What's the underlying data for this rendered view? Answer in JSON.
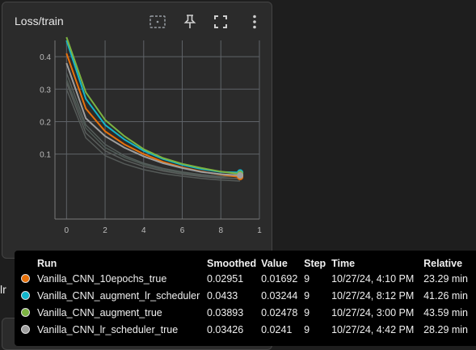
{
  "card": {
    "title": "Loss/train"
  },
  "toolbar": {
    "fit_icon": "fit-domain-icon",
    "pin_icon": "pin-icon",
    "fullscreen_icon": "fullscreen-icon",
    "more_icon": "more-vert-icon"
  },
  "side_label": "lr",
  "chart_data": {
    "type": "line",
    "title": "Loss/train",
    "xlabel": "",
    "ylabel": "",
    "x_ticks": [
      "0",
      "2",
      "4",
      "6",
      "8",
      "1"
    ],
    "y_ticks": [
      "0.1",
      "0.2",
      "0.3",
      "0.4"
    ],
    "xlim": [
      -0.6,
      10
    ],
    "ylim": [
      -0.1,
      0.45
    ],
    "grid": true,
    "series": [
      {
        "name": "Vanilla_CNN_10epochs_true",
        "color": "#e8710a",
        "x": [
          0,
          1,
          2,
          3,
          4,
          5,
          6,
          7,
          8,
          9
        ],
        "y": [
          0.41,
          0.24,
          0.17,
          0.13,
          0.1,
          0.076,
          0.059,
          0.046,
          0.037,
          0.0295
        ]
      },
      {
        "name": "Vanilla_CNN_augment_lr_scheduler",
        "color": "#12b5cb",
        "x": [
          0,
          1,
          2,
          3,
          4,
          5,
          6,
          7,
          8,
          9
        ],
        "y": [
          0.45,
          0.27,
          0.19,
          0.145,
          0.11,
          0.085,
          0.067,
          0.054,
          0.045,
          0.0433
        ]
      },
      {
        "name": "Vanilla_CNN_augment_true",
        "color": "#7cb342",
        "x": [
          0,
          1,
          2,
          3,
          4,
          5,
          6,
          7,
          8,
          9
        ],
        "y": [
          0.46,
          0.29,
          0.205,
          0.155,
          0.115,
          0.088,
          0.07,
          0.057,
          0.046,
          0.0389
        ]
      },
      {
        "name": "Vanilla_CNN_lr_scheduler_true",
        "color": "#9e9e9e",
        "x": [
          0,
          1,
          2,
          3,
          4,
          5,
          6,
          7,
          8,
          9
        ],
        "y": [
          0.38,
          0.21,
          0.155,
          0.12,
          0.093,
          0.072,
          0.057,
          0.045,
          0.038,
          0.0343
        ]
      }
    ],
    "raw_series": [
      {
        "color": "#555a58",
        "x": [
          0,
          1,
          2,
          3,
          4,
          5,
          6,
          7,
          8,
          9
        ],
        "y": [
          0.3,
          0.15,
          0.095,
          0.07,
          0.052,
          0.04,
          0.032,
          0.025,
          0.02,
          0.017
        ]
      },
      {
        "color": "#4f5a55",
        "x": [
          0,
          1,
          2,
          3,
          4,
          5,
          6,
          7,
          8,
          9
        ],
        "y": [
          0.33,
          0.18,
          0.12,
          0.09,
          0.068,
          0.052,
          0.042,
          0.034,
          0.028,
          0.024
        ]
      },
      {
        "color": "#565e5b",
        "x": [
          0,
          1,
          2,
          3,
          4,
          5,
          6,
          7,
          8,
          9
        ],
        "y": [
          0.35,
          0.19,
          0.13,
          0.095,
          0.072,
          0.056,
          0.045,
          0.037,
          0.031,
          0.0325
        ]
      },
      {
        "color": "#5a5e5c",
        "x": [
          0,
          1,
          2,
          3,
          4,
          5,
          6,
          7,
          8,
          9
        ],
        "y": [
          0.32,
          0.165,
          0.11,
          0.082,
          0.062,
          0.048,
          0.038,
          0.031,
          0.026,
          0.0248
        ]
      }
    ]
  },
  "tooltip": {
    "headers": {
      "run": "Run",
      "smoothed": "Smoothed",
      "value": "Value",
      "step": "Step",
      "time": "Time",
      "relative": "Relative"
    },
    "rows": [
      {
        "color": "#e8710a",
        "run": "Vanilla_CNN_10epochs_true",
        "smoothed": "0.02951",
        "value": "0.01692",
        "step": "9",
        "time": "10/27/24, 4:10 PM",
        "relative": "23.29 min"
      },
      {
        "color": "#12b5cb",
        "run": "Vanilla_CNN_augment_lr_scheduler",
        "smoothed": "0.0433",
        "value": "0.03244",
        "step": "9",
        "time": "10/27/24, 8:12 PM",
        "relative": "41.26 min"
      },
      {
        "color": "#7cb342",
        "run": "Vanilla_CNN_augment_true",
        "smoothed": "0.03893",
        "value": "0.02478",
        "step": "9",
        "time": "10/27/24, 3:00 PM",
        "relative": "43.59 min"
      },
      {
        "color": "#9e9e9e",
        "run": "Vanilla_CNN_lr_scheduler_true",
        "smoothed": "0.03426",
        "value": "0.0241",
        "step": "9",
        "time": "10/27/24, 4:42 PM",
        "relative": "28.29 min"
      }
    ]
  }
}
